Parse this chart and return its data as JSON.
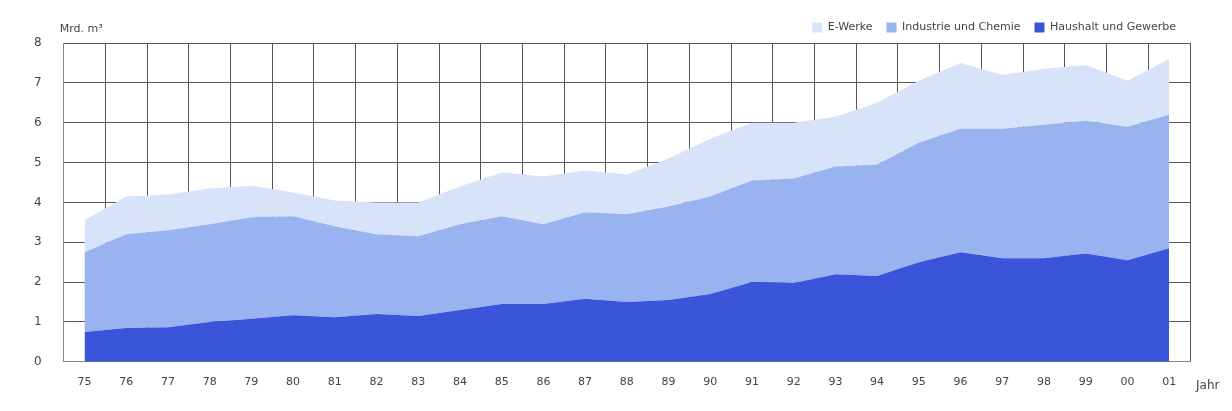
{
  "chart_data": {
    "type": "area",
    "ylabel": "Mrd. m³",
    "xlabel": "Jahr",
    "categories": [
      "75",
      "76",
      "77",
      "78",
      "79",
      "80",
      "81",
      "82",
      "83",
      "84",
      "85",
      "86",
      "87",
      "88",
      "89",
      "90",
      "91",
      "92",
      "93",
      "94",
      "95",
      "96",
      "97",
      "98",
      "99",
      "00",
      "01"
    ],
    "stacked": true,
    "ylim": [
      0,
      8
    ],
    "yticks": [
      0,
      1,
      2,
      3,
      4,
      5,
      6,
      7,
      8
    ],
    "grid": true,
    "legend": "top right",
    "marker": "none",
    "series": [
      {
        "name": "Haushalt und Gewerbe",
        "color": "#3a55d9",
        "values": [
          0.75,
          0.85,
          0.87,
          1.0,
          1.08,
          1.17,
          1.12,
          1.2,
          1.15,
          1.3,
          1.45,
          1.45,
          1.58,
          1.5,
          1.55,
          1.7,
          2.0,
          1.98,
          2.2,
          2.15,
          2.5,
          2.75,
          2.6,
          2.6,
          2.72,
          2.55,
          2.85
        ]
      },
      {
        "name": "Industrie und Chemie",
        "color": "#99b2f0",
        "values": [
          2.0,
          2.35,
          2.43,
          2.45,
          2.55,
          2.48,
          2.28,
          2.0,
          2.0,
          2.15,
          2.2,
          2.0,
          2.17,
          2.2,
          2.35,
          2.45,
          2.55,
          2.62,
          2.7,
          2.8,
          3.0,
          3.1,
          3.25,
          3.35,
          3.33,
          3.35,
          3.35
        ]
      },
      {
        "name": "E-Werke",
        "color": "#d6e3f8",
        "values": [
          0.8,
          0.95,
          0.9,
          0.9,
          0.79,
          0.6,
          0.65,
          0.8,
          0.85,
          0.95,
          1.1,
          1.2,
          1.05,
          1.0,
          1.2,
          1.45,
          1.45,
          1.4,
          1.25,
          1.55,
          1.55,
          1.65,
          1.35,
          1.4,
          1.4,
          1.15,
          1.4
        ]
      }
    ]
  }
}
